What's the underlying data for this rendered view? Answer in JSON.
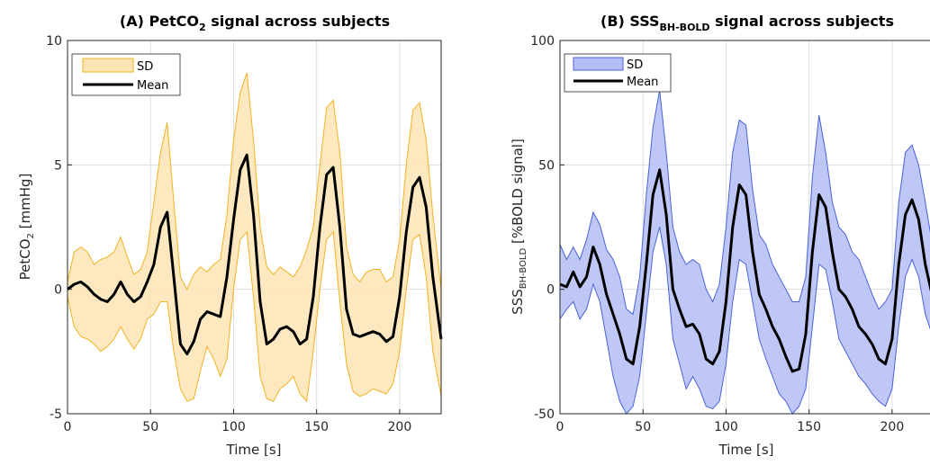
{
  "chart_data": [
    {
      "type": "area",
      "title": {
        "main": "(A) PetCO",
        "sub": "2",
        "rest": " signal across subjects"
      },
      "xlabel": "Time [s]",
      "ylabel": {
        "main": "PetCO",
        "sub": "2",
        "rest": " [mmHg]"
      },
      "xlim": [
        0,
        225
      ],
      "ylim": [
        -5,
        10
      ],
      "xticks": [
        0,
        50,
        100,
        150,
        200
      ],
      "xtick_labels": [
        "0",
        "50",
        "100",
        "150",
        "200"
      ],
      "yticks": [
        -5,
        0,
        5,
        10
      ],
      "ytick_labels": [
        "-5",
        "0",
        "5",
        "10"
      ],
      "grid": true,
      "legend": {
        "position": "top-left",
        "entries": [
          "SD",
          "Mean"
        ]
      },
      "colors": {
        "band_fill": "#fde4b5",
        "band_edge": "#f0b323",
        "mean": "#000000"
      },
      "series": [
        {
          "name": "Mean",
          "x": [
            0,
            4,
            8,
            12,
            16,
            20,
            24,
            28,
            32,
            36,
            40,
            44,
            48,
            52,
            56,
            60,
            64,
            68,
            72,
            76,
            80,
            84,
            88,
            92,
            96,
            100,
            104,
            108,
            112,
            116,
            120,
            124,
            128,
            132,
            136,
            140,
            144,
            148,
            152,
            156,
            160,
            164,
            168,
            172,
            176,
            180,
            184,
            188,
            192,
            196,
            200,
            204,
            208,
            212,
            216,
            220,
            225
          ],
          "y": [
            0,
            0.2,
            0.3,
            0.1,
            -0.2,
            -0.4,
            -0.5,
            -0.2,
            0.3,
            -0.2,
            -0.5,
            -0.3,
            0.3,
            1.0,
            2.5,
            3.1,
            0.5,
            -2.2,
            -2.6,
            -2.1,
            -1.2,
            -0.9,
            -1.0,
            -1.1,
            0.5,
            2.8,
            4.8,
            5.4,
            3.0,
            -0.5,
            -2.2,
            -2.0,
            -1.6,
            -1.5,
            -1.7,
            -2.2,
            -2.0,
            -0.3,
            2.5,
            4.6,
            4.9,
            2.5,
            -0.8,
            -1.8,
            -1.9,
            -1.8,
            -1.7,
            -1.8,
            -2.1,
            -1.9,
            -0.3,
            2.3,
            4.1,
            4.5,
            3.3,
            0.5,
            -2.0
          ]
        },
        {
          "name": "SD",
          "x": [
            0,
            4,
            8,
            12,
            16,
            20,
            24,
            28,
            32,
            36,
            40,
            44,
            48,
            52,
            56,
            60,
            64,
            68,
            72,
            76,
            80,
            84,
            88,
            92,
            96,
            100,
            104,
            108,
            112,
            116,
            120,
            124,
            128,
            132,
            136,
            140,
            144,
            148,
            152,
            156,
            160,
            164,
            168,
            172,
            176,
            180,
            184,
            188,
            192,
            196,
            200,
            204,
            208,
            212,
            216,
            220,
            225
          ],
          "upper": [
            0.3,
            1.5,
            1.7,
            1.5,
            1.0,
            1.2,
            1.3,
            1.5,
            2.1,
            1.3,
            0.6,
            0.8,
            1.5,
            3.5,
            5.5,
            6.7,
            3.5,
            0.5,
            0.0,
            0.6,
            0.9,
            0.7,
            1.0,
            1.2,
            3.0,
            6.0,
            7.9,
            8.7,
            6.0,
            2.5,
            0.9,
            0.6,
            0.9,
            0.7,
            0.5,
            0.9,
            1.6,
            2.5,
            5.0,
            7.3,
            7.6,
            5.5,
            1.7,
            0.6,
            0.3,
            0.7,
            0.8,
            0.8,
            0.3,
            0.5,
            2.0,
            5.0,
            7.2,
            7.5,
            6.0,
            3.0,
            0.0
          ],
          "lower": [
            -0.3,
            -1.5,
            -1.9,
            -2.0,
            -2.2,
            -2.5,
            -2.3,
            -2.0,
            -1.5,
            -2.0,
            -2.4,
            -2.0,
            -1.2,
            -1.0,
            -0.5,
            -0.5,
            -2.5,
            -4.0,
            -4.5,
            -4.4,
            -3.3,
            -2.3,
            -2.8,
            -3.5,
            -2.8,
            0.0,
            2.0,
            2.3,
            -0.3,
            -3.5,
            -4.4,
            -4.5,
            -4.0,
            -3.8,
            -3.5,
            -4.2,
            -4.5,
            -2.5,
            0.0,
            2.0,
            2.3,
            -0.5,
            -3.0,
            -4.1,
            -4.3,
            -4.2,
            -4.0,
            -4.1,
            -4.2,
            -3.8,
            -2.5,
            0.0,
            2.0,
            2.2,
            0.5,
            -2.5,
            -4.3
          ]
        }
      ]
    },
    {
      "type": "area",
      "title": {
        "main": "(B) SSS",
        "sub": "BH-BOLD",
        "rest": " signal across subjects"
      },
      "xlabel": "Time [s]",
      "ylabel": {
        "main": "SSS",
        "sub": "BH-BOLD",
        "rest": " [%BOLD signal]"
      },
      "xlim": [
        0,
        225
      ],
      "ylim": [
        -50,
        100
      ],
      "xticks": [
        0,
        50,
        100,
        150,
        200
      ],
      "xtick_labels": [
        "0",
        "50",
        "100",
        "150",
        "200"
      ],
      "yticks": [
        -50,
        0,
        50,
        100
      ],
      "ytick_labels": [
        "-50",
        "0",
        "50",
        "100"
      ],
      "grid": true,
      "legend": {
        "position": "top-left",
        "entries": [
          "SD",
          "Mean"
        ]
      },
      "colors": {
        "band_fill": "#b4bdf5",
        "band_edge": "#4a63d8",
        "mean": "#000000"
      },
      "series": [
        {
          "name": "Mean",
          "x": [
            0,
            4,
            8,
            12,
            16,
            20,
            24,
            28,
            32,
            36,
            40,
            44,
            48,
            52,
            56,
            60,
            64,
            68,
            72,
            76,
            80,
            84,
            88,
            92,
            96,
            100,
            104,
            108,
            112,
            116,
            120,
            124,
            128,
            132,
            136,
            140,
            144,
            148,
            152,
            156,
            160,
            164,
            168,
            172,
            176,
            180,
            184,
            188,
            192,
            196,
            200,
            204,
            208,
            212,
            216,
            220,
            225
          ],
          "y": [
            2,
            1,
            7,
            1,
            5,
            17,
            10,
            -2,
            -10,
            -18,
            -28,
            -30,
            -15,
            10,
            38,
            48,
            30,
            0,
            -8,
            -15,
            -14,
            -18,
            -28,
            -30,
            -25,
            -5,
            25,
            42,
            38,
            15,
            -2,
            -8,
            -15,
            -20,
            -27,
            -33,
            -32,
            -18,
            15,
            38,
            33,
            15,
            0,
            -3,
            -8,
            -15,
            -18,
            -22,
            -28,
            -30,
            -20,
            10,
            30,
            36,
            28,
            10,
            -5
          ]
        },
        {
          "name": "SD",
          "x": [
            0,
            4,
            8,
            12,
            16,
            20,
            24,
            28,
            32,
            36,
            40,
            44,
            48,
            52,
            56,
            60,
            64,
            68,
            72,
            76,
            80,
            84,
            88,
            92,
            96,
            100,
            104,
            108,
            112,
            116,
            120,
            124,
            128,
            132,
            136,
            140,
            144,
            148,
            152,
            156,
            160,
            164,
            168,
            172,
            176,
            180,
            184,
            188,
            192,
            196,
            200,
            204,
            208,
            212,
            216,
            220,
            225
          ],
          "upper": [
            18,
            12,
            17,
            12,
            20,
            31,
            26,
            16,
            12,
            5,
            -8,
            -10,
            5,
            38,
            65,
            80,
            55,
            25,
            15,
            10,
            12,
            10,
            0,
            -5,
            2,
            25,
            55,
            68,
            66,
            40,
            22,
            18,
            10,
            5,
            0,
            -5,
            -5,
            5,
            45,
            70,
            55,
            35,
            25,
            22,
            15,
            12,
            5,
            -2,
            -8,
            -5,
            0,
            35,
            55,
            58,
            50,
            35,
            15
          ]
        },
        {
          "name": "SD-lower",
          "x": [
            0,
            4,
            8,
            12,
            16,
            20,
            24,
            28,
            32,
            36,
            40,
            44,
            48,
            52,
            56,
            60,
            64,
            68,
            72,
            76,
            80,
            84,
            88,
            92,
            96,
            100,
            104,
            108,
            112,
            116,
            120,
            124,
            128,
            132,
            136,
            140,
            144,
            148,
            152,
            156,
            160,
            164,
            168,
            172,
            176,
            180,
            184,
            188,
            192,
            196,
            200,
            204,
            208,
            212,
            216,
            220,
            225
          ],
          "lower": [
            -12,
            -8,
            -5,
            -12,
            -8,
            2,
            -5,
            -20,
            -35,
            -45,
            -50,
            -47,
            -35,
            -10,
            15,
            25,
            10,
            -20,
            -30,
            -40,
            -35,
            -40,
            -47,
            -48,
            -45,
            -30,
            -5,
            12,
            10,
            -5,
            -20,
            -28,
            -35,
            -42,
            -45,
            -50,
            -47,
            -40,
            -15,
            10,
            8,
            -5,
            -20,
            -25,
            -30,
            -35,
            -38,
            -42,
            -45,
            -47,
            -40,
            -15,
            5,
            12,
            5,
            -10,
            -20
          ]
        }
      ]
    }
  ]
}
